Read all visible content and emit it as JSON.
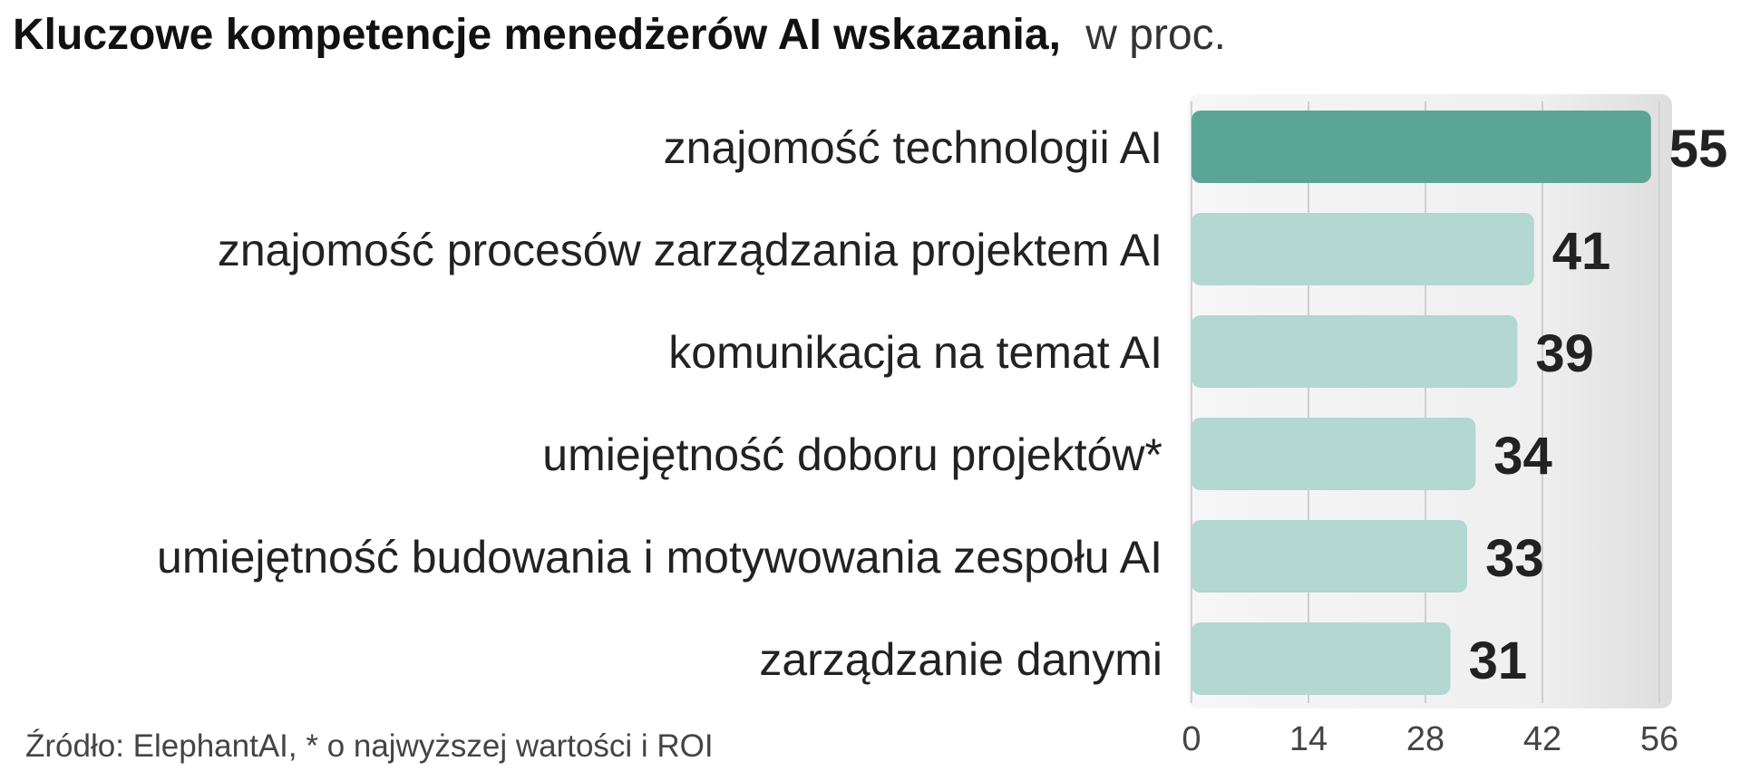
{
  "chart_data": {
    "type": "bar",
    "orientation": "horizontal",
    "title": "Kluczowe kompetencje menedżerów AI wskazania,",
    "subtitle": "w proc.",
    "categories": [
      "znajomość technologii AI",
      "znajomość procesów zarządzania projektem AI",
      "komunikacja na temat AI",
      "umiejętność doboru projektów*",
      "umiejętność budowania i motywowania zespołu AI",
      "zarządzanie danymi"
    ],
    "values": [
      55,
      41,
      39,
      34,
      33,
      31
    ],
    "value_labels": [
      "55",
      "41",
      "39",
      "34",
      "33",
      "31"
    ],
    "xlim": [
      0,
      56
    ],
    "x_ticks": [
      0,
      14,
      28,
      42,
      56
    ],
    "x_tick_labels": [
      "0",
      "14",
      "28",
      "42",
      "56"
    ],
    "grid": true,
    "source": "Źródło: ElephantAI, * o najwyższej wartości i ROI",
    "colors": {
      "highlight_bar": "#5aa596",
      "bar": "#b3d7d1",
      "panel": "#efefef",
      "grid": "#cfcfcf",
      "text": "#222222",
      "tick_text": "#444444"
    }
  }
}
